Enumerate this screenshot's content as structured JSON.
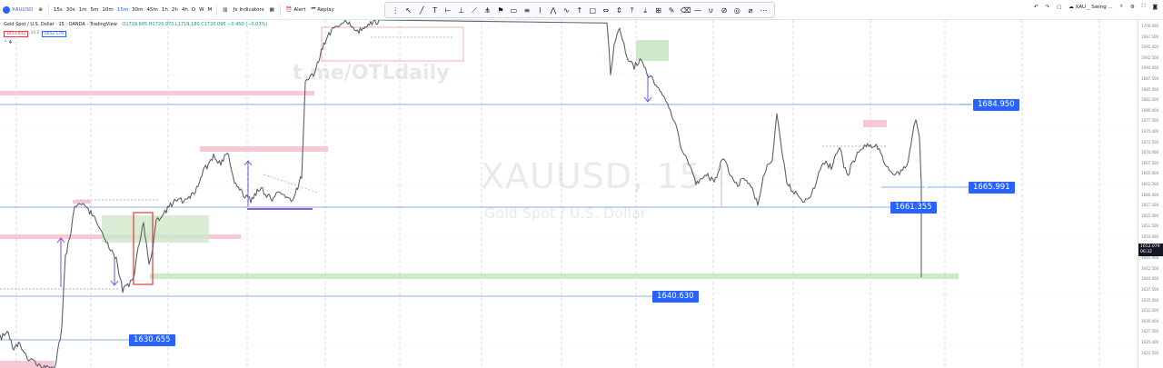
{
  "header": {
    "symbol": "XAUUSD",
    "intervals": [
      "15s",
      "30s",
      "1m",
      "5m",
      "10m",
      "15m",
      "30m",
      "45m",
      "1h",
      "2h",
      "4h",
      "D",
      "W",
      "M"
    ],
    "active_interval": "15m",
    "indicators_label": "Indicators",
    "alert_label": "Alert",
    "replay_label": "Replay",
    "layout_name": "XAU _ Swing ...",
    "accent_color": "#2962ff"
  },
  "legend": {
    "title": "Gold Spot / U.S. Dollar · 15 · OANDA · TradingView",
    "ohlc": "O1719.605 H1720.970 L1719.180 C1720.095 −0.450 (−0.03%)",
    "sell_price": "1651.831",
    "spread": "24.2",
    "buy_price": "1652.179"
  },
  "watermark": {
    "symbol": "XAUUSD, 15",
    "description": "Gold Spot / U.S. Dollar",
    "url": "t.me/OTLdaily"
  },
  "levels": [
    {
      "name": "level-1684",
      "value": "1684.950"
    },
    {
      "name": "level-1665",
      "value": "1665.991"
    },
    {
      "name": "level-1661",
      "value": "1661.355"
    },
    {
      "name": "level-1640",
      "value": "1640.630"
    },
    {
      "name": "level-1630",
      "value": "1630.655"
    }
  ],
  "price_axis": {
    "ticks": [
      "1700.000",
      "1697.500",
      "1695.000",
      "1692.500",
      "1690.000",
      "1687.500",
      "1685.000",
      "1682.500",
      "1680.000",
      "1677.500",
      "1675.000",
      "1672.500",
      "1670.000",
      "1667.500",
      "1665.000",
      "1662.500",
      "1660.000",
      "1657.500",
      "1655.000",
      "1652.500",
      "1650.000",
      "1647.500",
      "1645.000",
      "1642.500",
      "1640.000",
      "1637.500",
      "1635.000",
      "1632.500",
      "1630.000",
      "1627.500",
      "1625.000",
      "1622.500"
    ],
    "current_price": "1652.079",
    "countdown": "06:32"
  },
  "colors": {
    "candle": "#5d606b",
    "level_line": "#2962ff",
    "supply_zone": "#f7c9d2",
    "demand_zone": "#cfe8c9",
    "red_box": "#e53935",
    "arrow": "#7b4fd8"
  }
}
